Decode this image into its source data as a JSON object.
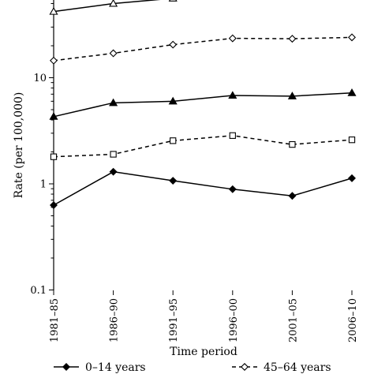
{
  "chart_data": {
    "type": "line",
    "xlabel": "Time period",
    "ylabel": "Rate (per 100,000)",
    "y_scale": "log",
    "ylim": [
      0.1,
      60
    ],
    "y_ticks": [
      {
        "value": 0.1,
        "label": "0.1"
      },
      {
        "value": 1,
        "label": "1"
      },
      {
        "value": 10,
        "label": "10"
      }
    ],
    "categories": [
      "1981–85",
      "1986–90",
      "1991–95",
      "1996–00",
      "2001–05",
      "2006–10"
    ],
    "grid": false,
    "legend_position": "bottom",
    "series": [
      {
        "name": "",
        "marker": "triangle-open",
        "dash": false,
        "values": [
          42,
          50,
          56,
          null,
          null,
          null
        ]
      },
      {
        "name": "45–64 years",
        "marker": "diamond-open",
        "dash": true,
        "values": [
          14.5,
          17,
          20.5,
          23.5,
          23.3,
          24
        ]
      },
      {
        "name": "",
        "marker": "triangle-filled",
        "dash": false,
        "values": [
          4.3,
          5.8,
          6.0,
          6.8,
          6.7,
          7.2
        ]
      },
      {
        "name": "",
        "marker": "square-open",
        "dash": true,
        "values": [
          1.8,
          1.9,
          2.55,
          2.85,
          2.35,
          2.6
        ]
      },
      {
        "name": "0–14 years",
        "marker": "diamond-filled",
        "dash": false,
        "values": [
          0.63,
          1.3,
          1.07,
          0.89,
          0.77,
          1.13
        ]
      }
    ]
  }
}
